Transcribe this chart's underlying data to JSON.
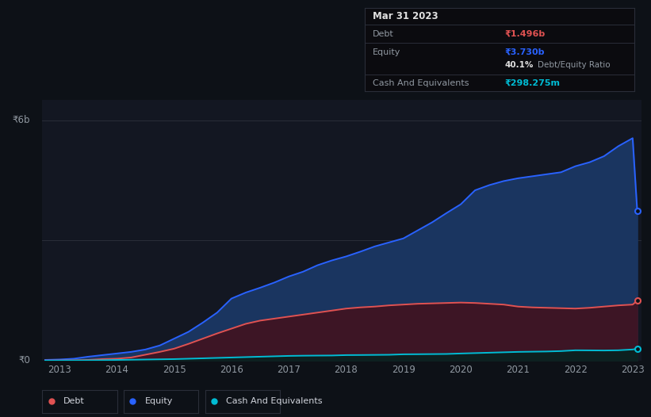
{
  "bg_color": "#131722",
  "plot_bg_color": "#131722",
  "outer_bg_color": "#0d1117",
  "grid_color": "#2a2e39",
  "text_color": "#9098a1",
  "debt_color": "#e05252",
  "equity_color": "#2962ff",
  "cash_color": "#00bcd4",
  "ylabel_text": "₹6b",
  "ylabel0_text": "₹0",
  "x_ticks": [
    2013,
    2014,
    2015,
    2016,
    2017,
    2018,
    2019,
    2020,
    2021,
    2022,
    2023
  ],
  "x_years": [
    2012.75,
    2013.0,
    2013.25,
    2013.5,
    2013.75,
    2014.0,
    2014.25,
    2014.5,
    2014.75,
    2015.0,
    2015.25,
    2015.5,
    2015.75,
    2016.0,
    2016.25,
    2016.5,
    2016.75,
    2017.0,
    2017.25,
    2017.5,
    2017.75,
    2018.0,
    2018.25,
    2018.5,
    2018.75,
    2019.0,
    2019.25,
    2019.5,
    2019.75,
    2020.0,
    2020.25,
    2020.5,
    2020.75,
    2021.0,
    2021.25,
    2021.5,
    2021.75,
    2022.0,
    2022.25,
    2022.5,
    2022.75,
    2023.0,
    2023.08
  ],
  "equity": [
    0.02,
    0.03,
    0.05,
    0.1,
    0.14,
    0.18,
    0.22,
    0.28,
    0.38,
    0.55,
    0.72,
    0.95,
    1.2,
    1.55,
    1.7,
    1.82,
    1.95,
    2.1,
    2.22,
    2.38,
    2.5,
    2.6,
    2.72,
    2.85,
    2.95,
    3.05,
    3.25,
    3.45,
    3.68,
    3.9,
    4.25,
    4.38,
    4.48,
    4.55,
    4.6,
    4.65,
    4.7,
    4.85,
    4.95,
    5.1,
    5.35,
    5.55,
    3.73
  ],
  "debt": [
    0.005,
    0.008,
    0.01,
    0.02,
    0.04,
    0.05,
    0.08,
    0.15,
    0.22,
    0.3,
    0.42,
    0.55,
    0.68,
    0.8,
    0.92,
    1.0,
    1.05,
    1.1,
    1.15,
    1.2,
    1.25,
    1.3,
    1.33,
    1.35,
    1.38,
    1.4,
    1.42,
    1.43,
    1.44,
    1.45,
    1.44,
    1.42,
    1.4,
    1.35,
    1.33,
    1.32,
    1.31,
    1.3,
    1.32,
    1.35,
    1.38,
    1.4,
    1.496
  ],
  "cash": [
    0.001,
    0.003,
    0.005,
    0.008,
    0.012,
    0.02,
    0.025,
    0.03,
    0.035,
    0.04,
    0.05,
    0.06,
    0.07,
    0.08,
    0.09,
    0.1,
    0.11,
    0.12,
    0.125,
    0.128,
    0.13,
    0.14,
    0.142,
    0.145,
    0.148,
    0.16,
    0.162,
    0.165,
    0.168,
    0.18,
    0.19,
    0.2,
    0.21,
    0.22,
    0.225,
    0.23,
    0.24,
    0.26,
    0.258,
    0.255,
    0.26,
    0.28,
    0.298
  ],
  "tooltip_title": "Mar 31 2023",
  "tooltip_debt_label": "Debt",
  "tooltip_debt_value": "₹1.496b",
  "tooltip_equity_label": "Equity",
  "tooltip_equity_value": "₹3.730b",
  "tooltip_ratio_value": "40.1%",
  "tooltip_ratio_label": "Debt/Equity Ratio",
  "tooltip_cash_label": "Cash And Equivalents",
  "tooltip_cash_value": "₹298.275m",
  "legend_items": [
    "Debt",
    "Equity",
    "Cash And Equivalents"
  ],
  "fill_equity_color": "#1a3560",
  "fill_debt_color": "#3d1525",
  "fill_cash_color": "#0d2020",
  "ylim_max": 6.5,
  "xlim_min": 2012.7,
  "xlim_max": 2023.15
}
